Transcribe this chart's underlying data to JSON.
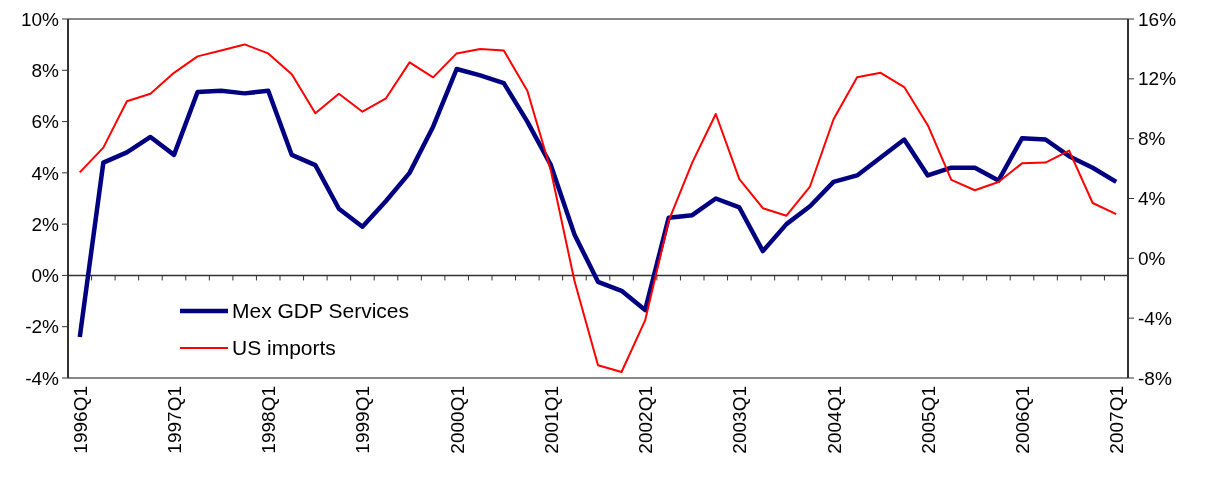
{
  "chart_data": {
    "type": "line",
    "categories": [
      "1996Q1",
      null,
      null,
      null,
      "1997Q1",
      null,
      null,
      null,
      "1998Q1",
      null,
      null,
      null,
      "1999Q1",
      null,
      null,
      null,
      "2000Q1",
      null,
      null,
      null,
      "2001Q1",
      null,
      null,
      null,
      "2002Q1",
      null,
      null,
      null,
      "2003Q1",
      null,
      null,
      null,
      "2004Q1",
      null,
      null,
      null,
      "2005Q1",
      null,
      null,
      null,
      "2006Q1",
      null,
      null,
      null,
      "2007Q1"
    ],
    "series": [
      {
        "name": "Mex GDP Services",
        "color": "#000080",
        "values": [
          -2.4,
          4.4,
          4.8,
          5.4,
          4.7,
          7.15,
          7.2,
          7.1,
          7.2,
          4.7,
          4.3,
          2.6,
          1.9,
          2.9,
          4.0,
          5.8,
          8.05,
          7.8,
          7.5,
          6.0,
          4.3,
          1.6,
          -0.25,
          -0.6,
          -1.35,
          2.25,
          2.35,
          3.0,
          2.65,
          0.95,
          2.0,
          2.7,
          3.65,
          3.9,
          4.6,
          5.3,
          3.9,
          4.2,
          4.2,
          3.7,
          5.35,
          5.3,
          4.65,
          4.2,
          3.65
        ]
      },
      {
        "name": "US imports",
        "color": "#ff0000",
        "axis": "y2",
        "values": [
          5.75,
          7.4,
          10.5,
          11.0,
          12.4,
          13.5,
          13.9,
          14.3,
          13.7,
          12.3,
          9.7,
          11.0,
          9.8,
          10.7,
          13.1,
          12.1,
          13.7,
          14.0,
          13.9,
          11.2,
          5.85,
          -1.5,
          -7.15,
          -7.6,
          -4.15,
          2.5,
          6.4,
          9.65,
          5.3,
          3.35,
          2.85,
          4.8,
          9.3,
          12.1,
          12.4,
          11.45,
          8.9,
          5.25,
          4.55,
          5.1,
          6.35,
          6.4,
          7.2,
          3.7,
          2.95
        ]
      }
    ],
    "ylim": [
      -4,
      10
    ],
    "yticks": [
      {
        "value": -4,
        "label": "-4%"
      },
      {
        "value": -2,
        "label": "-2%"
      },
      {
        "value": 0,
        "label": "0%"
      },
      {
        "value": 2,
        "label": "2%"
      },
      {
        "value": 4,
        "label": "4%"
      },
      {
        "value": 6,
        "label": "6%"
      },
      {
        "value": 8,
        "label": "8%"
      },
      {
        "value": 10,
        "label": "10%"
      }
    ],
    "y2lim": [
      -8,
      16
    ],
    "y2ticks": [
      {
        "value": -8,
        "label": "-8%"
      },
      {
        "value": -4,
        "label": "-4%"
      },
      {
        "value": 0,
        "label": "0%"
      },
      {
        "value": 4,
        "label": "4%"
      },
      {
        "value": 8,
        "label": "8%"
      },
      {
        "value": 12,
        "label": "12%"
      },
      {
        "value": 16,
        "label": "16%"
      }
    ],
    "legend": "bottom left",
    "marker": "none",
    "line_style": "solid"
  }
}
